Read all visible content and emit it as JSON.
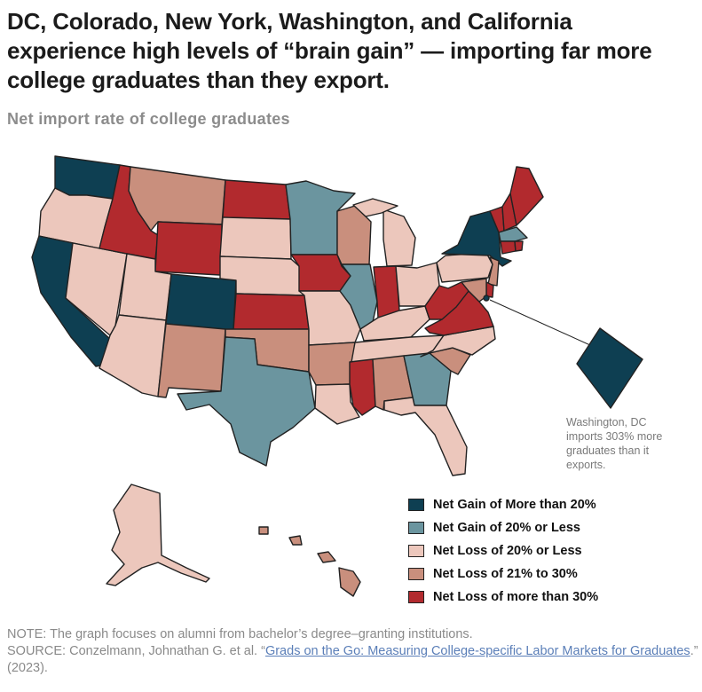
{
  "title": "DC, Colorado, New York, Washington, and California experience high levels of “brain gain” — importing far more college graduates than they export.",
  "subtitle": "Net import rate of college graduates",
  "colors": {
    "gain_high": "#0e3f52",
    "gain_low": "#6b959f",
    "loss_low": "#ecc7bc",
    "loss_mid": "#c98f7d",
    "loss_high": "#b22a2e"
  },
  "legend": [
    {
      "label": "Net Gain of More than 20%",
      "category": "gain_high"
    },
    {
      "label": "Net Gain of 20% or Less",
      "category": "gain_low"
    },
    {
      "label": "Net Loss of 20% or Less",
      "category": "loss_low"
    },
    {
      "label": "Net Loss of 21% to 30%",
      "category": "loss_mid"
    },
    {
      "label": "Net Loss of more than 30%",
      "category": "loss_high"
    }
  ],
  "states": {
    "WA": "gain_high",
    "OR": "loss_low",
    "CA": "gain_high",
    "NV": "loss_low",
    "ID": "loss_high",
    "MT": "loss_mid",
    "WY": "loss_high",
    "UT": "loss_low",
    "AZ": "loss_low",
    "CO": "gain_high",
    "NM": "loss_mid",
    "ND": "loss_high",
    "SD": "loss_low",
    "NE": "loss_low",
    "KS": "loss_high",
    "OK": "loss_mid",
    "TX": "gain_low",
    "MN": "gain_low",
    "IA": "loss_high",
    "MO": "loss_low",
    "AR": "loss_mid",
    "LA": "loss_low",
    "WI": "loss_mid",
    "IL": "gain_low",
    "MI": "loss_low",
    "IN": "loss_high",
    "OH": "loss_low",
    "KY": "loss_low",
    "TN": "loss_low",
    "MS": "loss_high",
    "AL": "loss_mid",
    "GA": "gain_low",
    "FL": "loss_low",
    "SC": "loss_mid",
    "NC": "loss_low",
    "VA": "loss_high",
    "WV": "loss_high",
    "PA": "loss_low",
    "NY": "gain_high",
    "VT": "loss_high",
    "NH": "loss_high",
    "ME": "loss_high",
    "MA": "gain_low",
    "RI": "loss_high",
    "CT": "loss_high",
    "NJ": "loss_mid",
    "DE": "loss_high",
    "MD": "loss_mid",
    "DC": "gain_high",
    "AK": "loss_low",
    "HI": "loss_mid"
  },
  "dc_note": "Washington, DC imports 303% more graduates than it exports.",
  "note": {
    "line1": "NOTE: The graph focuses on alumni from bachelor’s degree–granting institutions.",
    "source_prefix": "SOURCE: Conzelmann, Johnathan G. et al. “",
    "source_link": "Grads on the Go: Measuring College-specific Labor Markets for Graduates",
    "source_suffix": ".” (2023)."
  }
}
